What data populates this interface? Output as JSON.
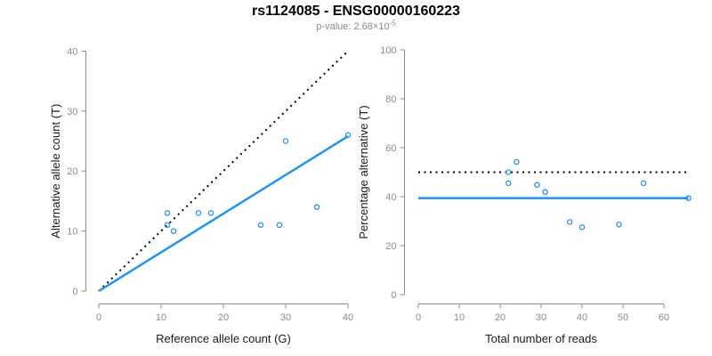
{
  "header": {
    "title": "rs1124085 - ENSG00000160223",
    "p_label": "p-value: ",
    "p_mantissa": "2.68×10",
    "p_exponent": "-5"
  },
  "colors": {
    "point_blue": "#1E90FF",
    "line_blue": "#1E90FF",
    "dotted_black": "#000000",
    "axis_gray": "#8C8C8C",
    "text_dark": "#1A1A1A",
    "subtitle_gray": "#8A8A8A"
  },
  "chart_data": [
    {
      "type": "scatter",
      "title": "",
      "xlabel": "Reference allele count (G)",
      "ylabel": "Alternative allele count (T)",
      "xlim": [
        0,
        40
      ],
      "ylim": [
        0,
        40
      ],
      "xticks": [
        0,
        10,
        20,
        30,
        40
      ],
      "yticks": [
        0,
        10,
        20,
        30,
        40
      ],
      "grid": false,
      "legend": "none",
      "points": [
        [
          11,
          13
        ],
        [
          11,
          11
        ],
        [
          12,
          10
        ],
        [
          16,
          13
        ],
        [
          18,
          13
        ],
        [
          26,
          11
        ],
        [
          29,
          11
        ],
        [
          30,
          25
        ],
        [
          35,
          14
        ],
        [
          40,
          26
        ]
      ],
      "lines": [
        {
          "name": "identity-line",
          "style": "dotted",
          "color": "dotted_black",
          "x": [
            0,
            40
          ],
          "y": [
            0,
            40
          ],
          "meaning": "1:1 expected ratio (50%)"
        },
        {
          "name": "fit-line",
          "style": "solid",
          "color": "line_blue",
          "x": [
            0,
            40
          ],
          "y": [
            0,
            25.8
          ],
          "meaning": "fitted allelic ratio, slope ~0.645"
        }
      ]
    },
    {
      "type": "scatter",
      "title": "",
      "xlabel": "Total number of reads",
      "ylabel": "Percentage alternative (T)",
      "xlim": [
        0,
        66
      ],
      "ylim": [
        0,
        100
      ],
      "xticks": [
        0,
        10,
        20,
        30,
        40,
        50,
        60
      ],
      "yticks": [
        0,
        20,
        40,
        60,
        80,
        100
      ],
      "grid": false,
      "legend": "none",
      "points": [
        [
          24,
          54.2
        ],
        [
          22,
          50
        ],
        [
          22,
          45.5
        ],
        [
          29,
          44.8
        ],
        [
          31,
          41.9
        ],
        [
          37,
          29.7
        ],
        [
          40,
          27.5
        ],
        [
          55,
          45.5
        ],
        [
          49,
          28.6
        ],
        [
          66,
          39.4
        ]
      ],
      "lines": [
        {
          "name": "expected-50pct-line",
          "style": "dotted",
          "color": "dotted_black",
          "x": [
            0,
            66
          ],
          "y": [
            50,
            50
          ],
          "meaning": "50% expected"
        },
        {
          "name": "mean-percentage-line",
          "style": "solid",
          "color": "line_blue",
          "x": [
            0,
            66
          ],
          "y": [
            39.4,
            39.4
          ],
          "meaning": "observed mean percentage"
        }
      ]
    }
  ]
}
